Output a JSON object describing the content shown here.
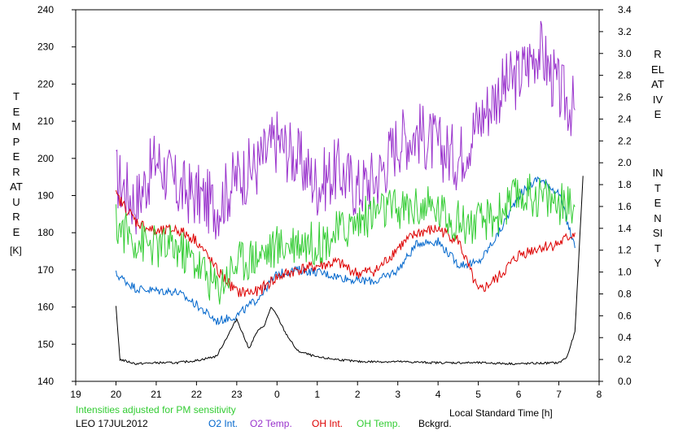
{
  "chart_data": {
    "type": "line",
    "left_axis_label": "TEMPERATURE",
    "left_axis_unit": "[K]",
    "right_axis_label": "RELATIVE INTENSITY",
    "xlabel": "Local Standard Time [h]",
    "note": "Intensities adjusted for PM sensitivity",
    "station_date": "LEO 17JUL2012",
    "xlim": [
      19,
      8
    ],
    "x_ticks": [
      "19",
      "20",
      "21",
      "22",
      "23",
      "0",
      "1",
      "2",
      "3",
      "4",
      "5",
      "6",
      "7",
      "8"
    ],
    "ylim_left": [
      140,
      240
    ],
    "y_ticks_left": [
      "140",
      "150",
      "160",
      "170",
      "180",
      "190",
      "200",
      "210",
      "220",
      "230",
      "240"
    ],
    "ylim_right": [
      0.0,
      3.4
    ],
    "y_ticks_right": [
      "0.0",
      "0.2",
      "0.4",
      "0.6",
      "0.8",
      "1.0",
      "1.2",
      "1.4",
      "1.6",
      "1.8",
      "2.0",
      "2.2",
      "2.4",
      "2.6",
      "2.8",
      "3.0",
      "3.2",
      "3.4"
    ],
    "series": [
      {
        "name": "O2 Temp.",
        "axis": "left",
        "color": "#9933cc",
        "x": [
          20.0,
          20.5,
          21.0,
          21.5,
          22.0,
          22.5,
          23.0,
          23.5,
          0.0,
          0.5,
          1.0,
          1.5,
          2.0,
          2.5,
          3.0,
          3.5,
          4.0,
          4.5,
          5.0,
          5.5,
          6.0,
          6.5,
          7.0,
          7.4
        ],
        "y": [
          195,
          188,
          200,
          192,
          190,
          187,
          195,
          198,
          205,
          200,
          193,
          197,
          192,
          195,
          205,
          207,
          203,
          200,
          210,
          218,
          222,
          230,
          218,
          213
        ]
      },
      {
        "name": "O2 Int.",
        "axis": "right",
        "color": "#0066cc",
        "x": [
          20.0,
          20.5,
          21.0,
          21.5,
          22.0,
          22.5,
          23.0,
          23.5,
          0.0,
          0.5,
          1.0,
          1.5,
          2.0,
          2.5,
          3.0,
          3.5,
          4.0,
          4.5,
          5.0,
          5.5,
          6.0,
          6.5,
          7.0,
          7.4
        ],
        "y": [
          0.98,
          0.85,
          0.83,
          0.82,
          0.7,
          0.55,
          0.6,
          0.75,
          0.98,
          1.02,
          1.0,
          0.96,
          0.92,
          0.92,
          1.02,
          1.27,
          1.28,
          1.07,
          1.08,
          1.35,
          1.7,
          1.86,
          1.72,
          1.22
        ]
      },
      {
        "name": "OH Int.",
        "axis": "left",
        "color": "#dd0000",
        "x": [
          20.0,
          20.5,
          21.0,
          21.5,
          22.0,
          22.5,
          23.0,
          23.5,
          0.0,
          0.5,
          1.0,
          1.5,
          2.0,
          2.5,
          3.0,
          3.5,
          4.0,
          4.5,
          5.0,
          5.5,
          6.0,
          6.5,
          7.0,
          7.4
        ],
        "y": [
          190,
          183,
          180,
          181,
          178,
          170,
          164,
          164,
          168,
          170,
          171,
          172,
          169,
          170,
          176,
          180,
          181,
          178,
          164,
          168,
          174,
          176,
          177,
          180
        ]
      },
      {
        "name": "OH Temp.",
        "axis": "left",
        "color": "#33cc33",
        "x": [
          20.0,
          20.5,
          21.0,
          21.5,
          22.0,
          22.5,
          23.0,
          23.5,
          0.0,
          0.5,
          1.0,
          1.5,
          2.0,
          2.5,
          3.0,
          3.5,
          4.0,
          4.5,
          5.0,
          5.5,
          6.0,
          6.5,
          7.0,
          7.4
        ],
        "y": [
          182,
          178,
          176,
          176,
          172,
          165,
          172,
          174,
          176,
          178,
          177,
          180,
          183,
          186,
          186,
          187,
          186,
          183,
          182,
          185,
          190,
          190,
          188,
          187
        ]
      },
      {
        "name": "Bckgrd.",
        "axis": "right",
        "color": "#000000",
        "x": [
          20.0,
          20.1,
          20.5,
          21.0,
          21.5,
          22.0,
          22.5,
          23.0,
          23.3,
          23.5,
          23.7,
          23.85,
          0.0,
          0.2,
          0.5,
          1.0,
          1.5,
          2.0,
          3.0,
          4.0,
          5.0,
          6.0,
          7.0,
          7.2,
          7.4,
          7.6
        ],
        "y": [
          0.68,
          0.2,
          0.16,
          0.17,
          0.17,
          0.19,
          0.23,
          0.57,
          0.3,
          0.45,
          0.52,
          0.68,
          0.6,
          0.45,
          0.28,
          0.22,
          0.2,
          0.18,
          0.18,
          0.17,
          0.17,
          0.16,
          0.17,
          0.22,
          0.45,
          1.88
        ]
      }
    ],
    "legend": [
      {
        "label": "O2 Int.",
        "color": "#0066cc"
      },
      {
        "label": "O2 Temp.",
        "color": "#9933cc"
      },
      {
        "label": "OH Int.",
        "color": "#dd0000"
      },
      {
        "label": "OH Temp.",
        "color": "#33cc33"
      },
      {
        "label": "Bckgrd.",
        "color": "#000000"
      }
    ]
  }
}
